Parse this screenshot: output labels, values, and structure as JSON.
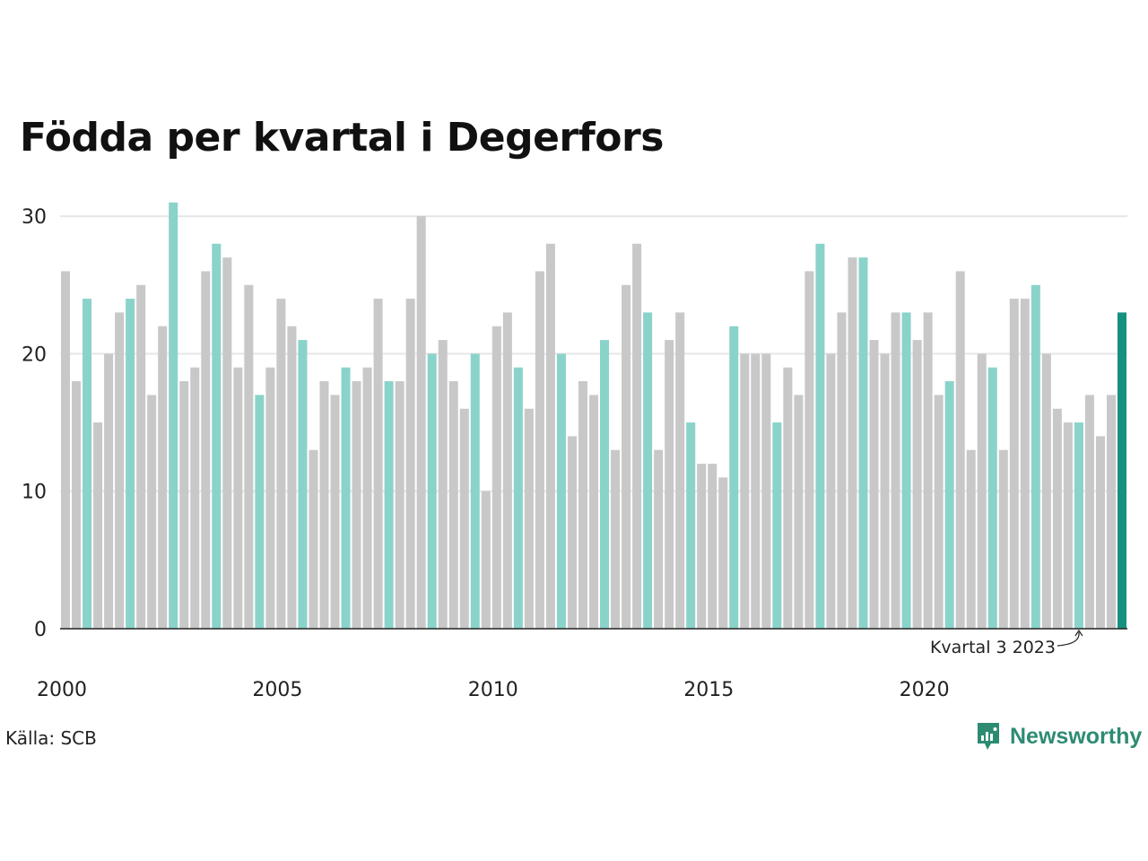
{
  "title": "Födda per kvartal i Degerfors",
  "source": "Källa: SCB",
  "brand": {
    "name": "Newsworthy",
    "icon": "newsworthy-logo-icon",
    "color": "#2e8b73"
  },
  "colors": {
    "normal": "#c8c8c8",
    "q3": "#8ad3ca",
    "latest": "#17917f",
    "grid": "#e6e6e6",
    "axis": "#222222"
  },
  "annotation": {
    "text": "Kvartal 3 2023",
    "index": 94
  },
  "chart_data": {
    "type": "bar",
    "x_start": "2000 Q1",
    "x_tick_labels": [
      "2000",
      "2005",
      "2010",
      "2015",
      "2020"
    ],
    "y_ticks": [
      0,
      10,
      20,
      30
    ],
    "ylim": [
      0,
      32
    ],
    "grid": true,
    "highlight": "Q3 bars in turquoise, latest bar in dark teal",
    "values": [
      26,
      18,
      24,
      15,
      20,
      23,
      24,
      25,
      17,
      22,
      31,
      18,
      19,
      26,
      28,
      27,
      19,
      25,
      17,
      19,
      24,
      22,
      21,
      13,
      18,
      17,
      19,
      18,
      19,
      24,
      18,
      18,
      24,
      30,
      20,
      21,
      18,
      16,
      20,
      10,
      22,
      23,
      19,
      16,
      26,
      28,
      20,
      14,
      18,
      17,
      21,
      13,
      25,
      28,
      23,
      13,
      21,
      23,
      15,
      12,
      12,
      11,
      22,
      20,
      20,
      20,
      15,
      19,
      17,
      26,
      28,
      20,
      23,
      27,
      27,
      21,
      20,
      23,
      23,
      21,
      23,
      17,
      18,
      26,
      13,
      20,
      19,
      13,
      24,
      24,
      25,
      20,
      16,
      15,
      15,
      17,
      14,
      17,
      23
    ]
  }
}
